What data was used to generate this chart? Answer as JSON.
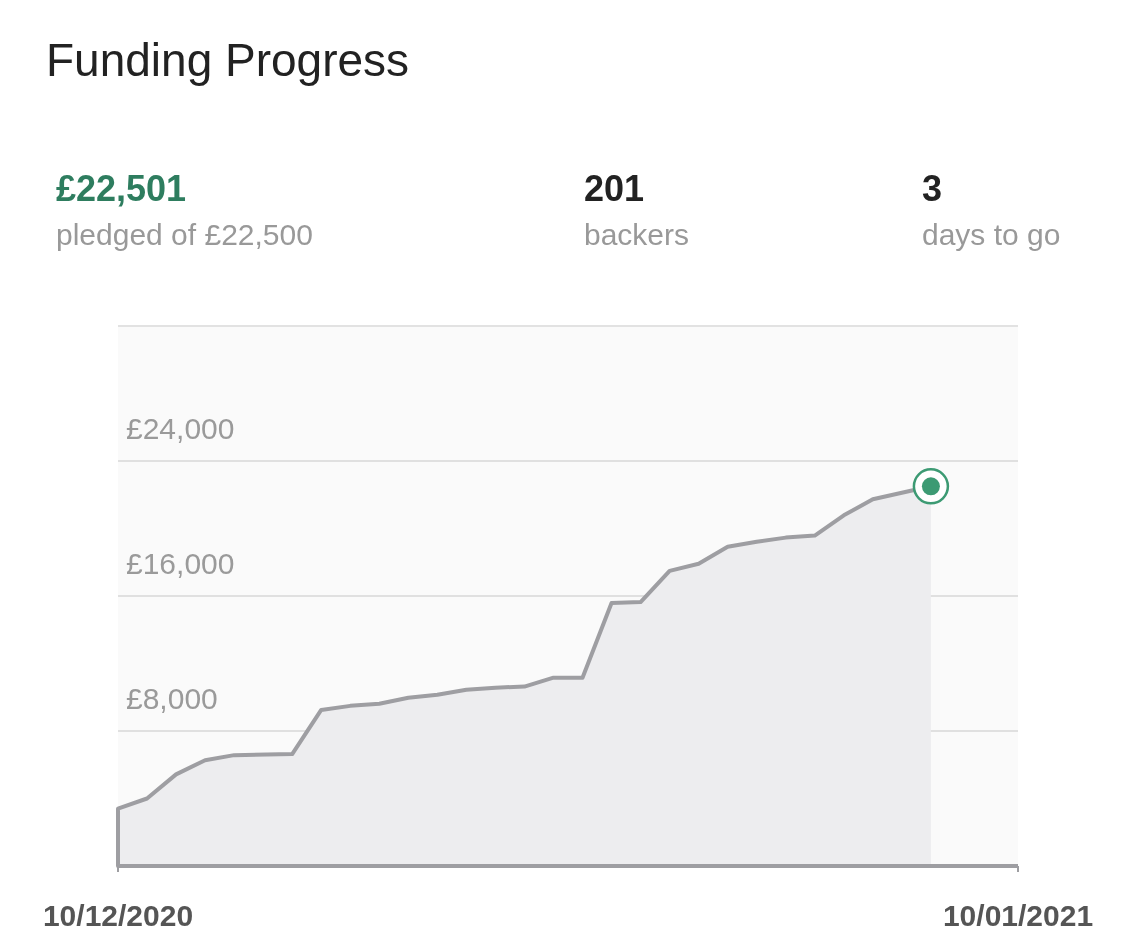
{
  "chart_data": {
    "type": "area",
    "title": "Funding Progress",
    "annotations": [
      "£22,501",
      "pledged of £22,500",
      "201",
      "backers",
      "3",
      "days to go"
    ],
    "x": [
      "2020-12-10",
      "2020-12-10",
      "2020-12-11",
      "2020-12-12",
      "2020-12-13",
      "2020-12-14",
      "2020-12-16",
      "2020-12-17",
      "2020-12-18",
      "2020-12-19",
      "2020-12-20",
      "2020-12-21",
      "2020-12-22",
      "2020-12-23",
      "2020-12-24",
      "2020-12-25",
      "2020-12-26",
      "2020-12-27",
      "2020-12-28",
      "2020-12-29",
      "2020-12-30",
      "2020-12-31",
      "2021-01-01",
      "2021-01-02",
      "2021-01-03",
      "2021-01-04",
      "2021-01-05",
      "2021-01-07"
    ],
    "series": [
      {
        "color": "#9e9ea2",
        "values": [
          0,
          3400,
          4000,
          5430,
          6270,
          6570,
          6630,
          9250,
          9490,
          9610,
          9970,
          10150,
          10450,
          10570,
          10630,
          11160,
          11160,
          15580,
          15640,
          17490,
          17910,
          18920,
          19220,
          19460,
          19580,
          20780,
          21730,
          22501
        ]
      }
    ],
    "xlim": [
      "2020-12-10",
      "2021-01-10"
    ],
    "xticks": [
      {
        "value": "2020-12-10",
        "label": "10/12/2020"
      },
      {
        "value": "2021-01-10",
        "label": "10/01/2021"
      }
    ],
    "ylim": [
      0,
      32000
    ],
    "yticks": [
      {
        "value": 0,
        "label": null
      },
      {
        "value": 8000,
        "label": "£8,000"
      },
      {
        "value": 16000,
        "label": "£16,000"
      },
      {
        "value": 24000,
        "label": "£24,000"
      }
    ],
    "grid": "y"
  }
}
